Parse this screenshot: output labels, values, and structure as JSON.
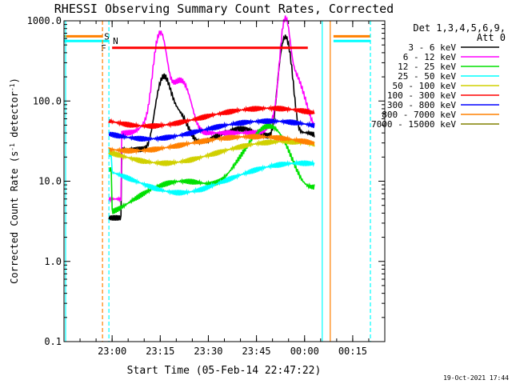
{
  "chart_data": {
    "type": "line",
    "title": "RHESSI Observing Summary Count Rates, Corrected",
    "xlabel": "Start Time (05-Feb-14 22:47:22)",
    "ylabel_main": "Corrected Count Rate (s",
    "ylabel_sup1": "-1",
    "ylabel_mid": " detector",
    "ylabel_sup2": "-1",
    "ylabel_end": ")",
    "y_scale": "log",
    "ylim": [
      0.1,
      1000
    ],
    "xlim_minutes": [
      -10,
      30
    ],
    "x_ticks": [
      {
        "label": "23:00",
        "minutes": -60
      },
      {
        "label": "23:15",
        "minutes": -45
      },
      {
        "label": "23:30",
        "minutes": -30
      },
      {
        "label": "23:45",
        "minutes": -15
      },
      {
        "label": "00:00",
        "minutes": 0
      },
      {
        "label": "00:15",
        "minutes": 15
      }
    ],
    "y_ticks": [
      {
        "label": "0.1",
        "value": 0.1
      },
      {
        "label": "1.0",
        "value": 1
      },
      {
        "label": "10.0",
        "value": 10
      },
      {
        "label": "100.0",
        "value": 100
      },
      {
        "label": "1000.0",
        "value": 1000
      }
    ],
    "legend_header": [
      "Det 1,3,4,5,6,9,",
      "Att 0"
    ],
    "legend_position": "right",
    "footer": "19-Oct-2021 17:44",
    "flags": {
      "S": {
        "label": "S",
        "color": "#ff8000"
      },
      "N": {
        "label": "N",
        "color": "#00ffff"
      },
      "F": {
        "label": "F",
        "color": "#ff0000"
      }
    },
    "series": [
      {
        "name": "3 - 6 keV",
        "color": "#000000"
      },
      {
        "name": "6 - 12 keV",
        "color": "#ff00ff"
      },
      {
        "name": "12 - 25 keV",
        "color": "#00e000"
      },
      {
        "name": "25 - 50 keV",
        "color": "#00ffff"
      },
      {
        "name": "50 - 100 keV",
        "color": "#d0d000"
      },
      {
        "name": "100 - 300 keV",
        "color": "#ff0000"
      },
      {
        "name": "300 - 800 keV",
        "color": "#0000ff"
      },
      {
        "name": "800 - 7000 keV",
        "color": "#ff8000"
      },
      {
        "name": "7000 - 15000 keV",
        "color": "#808000"
      }
    ]
  }
}
